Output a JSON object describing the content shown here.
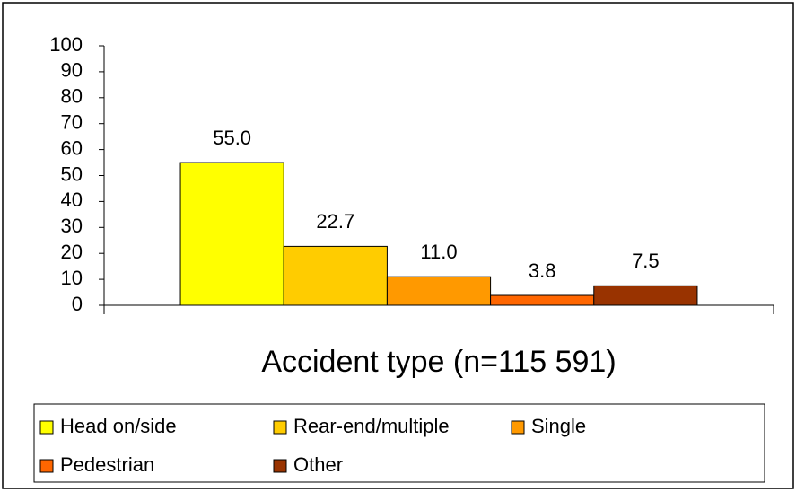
{
  "chart_data": {
    "type": "bar",
    "x_label": "Accident type (n=115 591)",
    "categories": [
      null
    ],
    "series": [
      {
        "name": "Head on/side",
        "color": "#ffff00",
        "values": [
          55.0
        ],
        "value_labels": [
          "55.0"
        ]
      },
      {
        "name": "Rear-end/multiple",
        "color": "#ffcc00",
        "values": [
          22.7
        ],
        "value_labels": [
          "22.7"
        ]
      },
      {
        "name": "Single",
        "color": "#ff9900",
        "values": [
          11.0
        ],
        "value_labels": [
          "11.0"
        ]
      },
      {
        "name": "Pedestrian",
        "color": "#ff6600",
        "values": [
          3.8
        ],
        "value_labels": [
          "3.8"
        ]
      },
      {
        "name": "Other",
        "color": "#993300",
        "values": [
          7.5
        ],
        "value_labels": [
          "7.5"
        ]
      }
    ],
    "ylim": [
      0,
      100
    ],
    "yticks": [
      0,
      10,
      20,
      30,
      40,
      50,
      60,
      70,
      80,
      90,
      100
    ],
    "grid": false,
    "legend": "bottom"
  }
}
